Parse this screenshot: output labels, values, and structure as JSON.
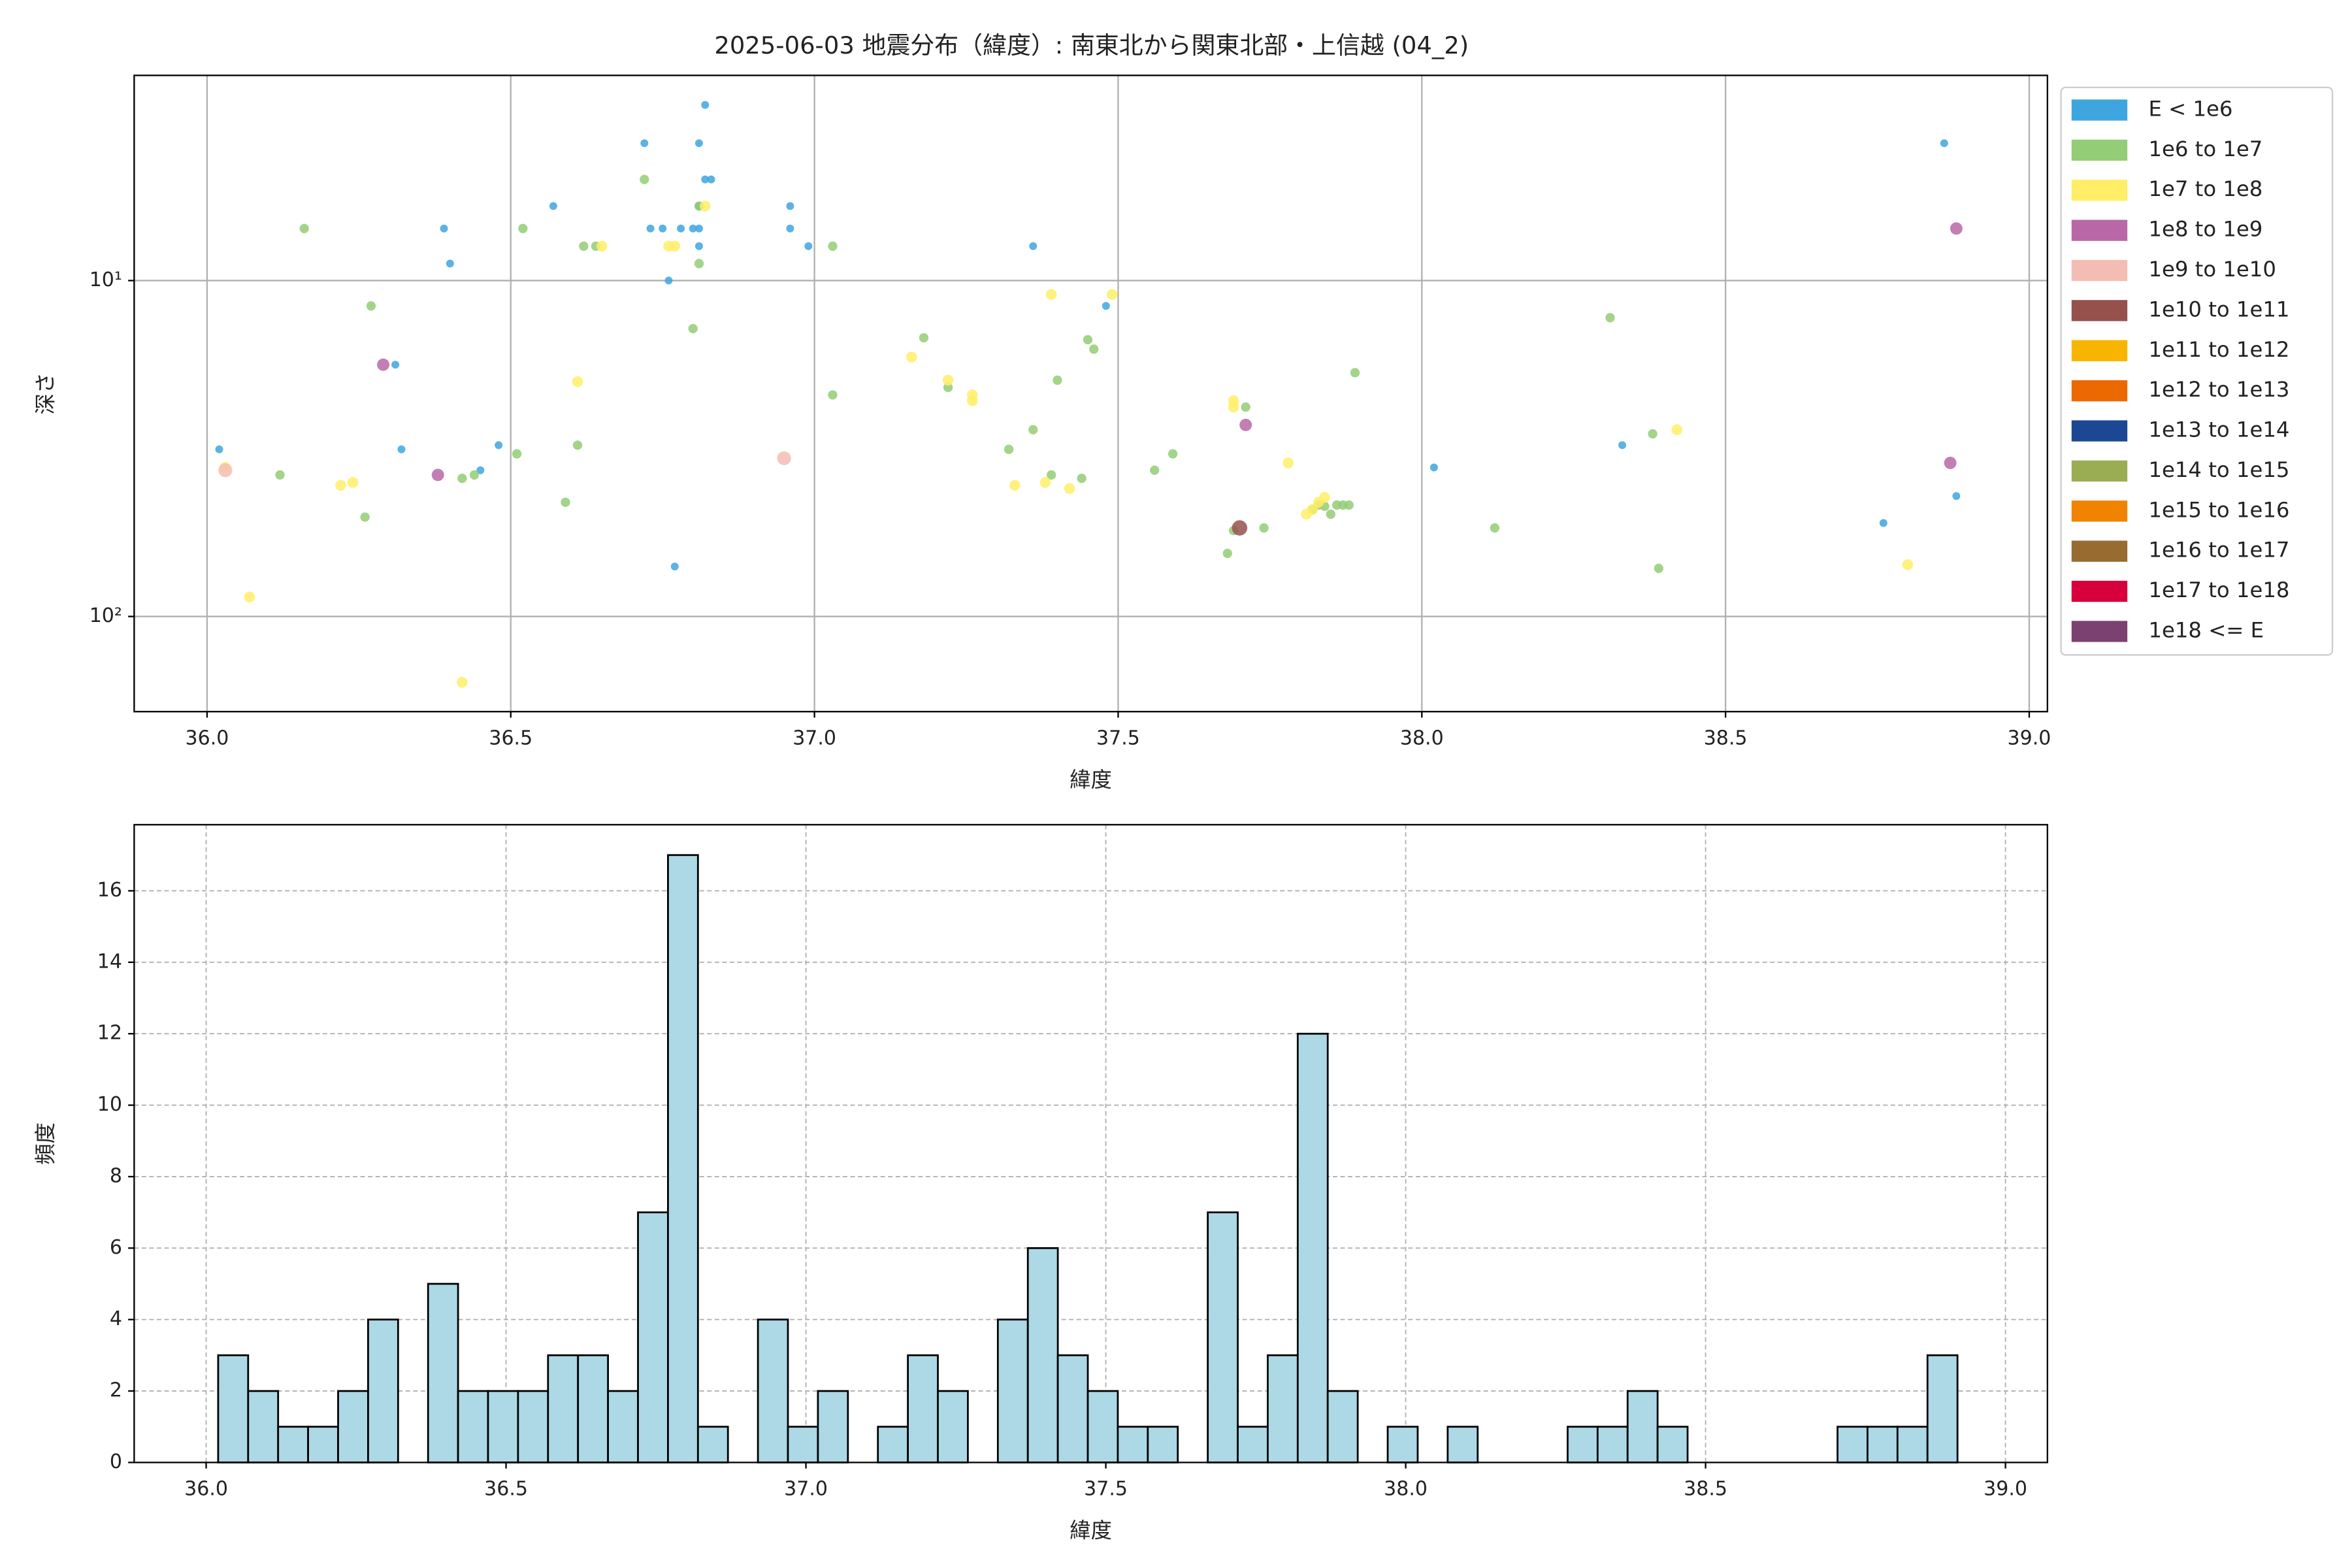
{
  "chart_data": [
    {
      "type": "scatter",
      "title": "2025-06-03 地震分布（緯度）: 南東北から関東北部・上信越 (04_2)",
      "xlabel": "緯度",
      "ylabel": "深さ",
      "yscale": "log",
      "grid": true,
      "legend": "outside-right",
      "xlim": [
        35.88,
        39.03
      ],
      "ylim": [
        192,
        2.45
      ],
      "xticks": [
        {
          "value": 36,
          "label": "36.0"
        },
        {
          "value": 36.5,
          "label": "36.5"
        },
        {
          "value": 37,
          "label": "37.0"
        },
        {
          "value": 37.5,
          "label": "37.5"
        },
        {
          "value": 38,
          "label": "38.0"
        },
        {
          "value": 38.5,
          "label": "38.5"
        },
        {
          "value": 39,
          "label": "39.0"
        }
      ],
      "yticks": [
        {
          "value": 10,
          "label": "10¹"
        },
        {
          "value": 100,
          "label": "10²"
        }
      ],
      "series": [
        {
          "name": "E < 1e6",
          "color": "#3ea6de",
          "x": [
            36.02,
            36.31,
            36.32,
            36.39,
            36.4,
            36.45,
            36.48,
            36.57,
            36.72,
            36.73,
            36.75,
            36.76,
            36.77,
            36.78,
            36.8,
            36.81,
            36.81,
            36.81,
            36.81,
            36.82,
            36.82,
            36.83,
            36.96,
            36.96,
            36.99,
            37.36,
            37.48,
            38.02,
            38.33,
            38.76,
            38.86,
            38.88
          ],
          "values": [
            31.8,
            17.8,
            31.8,
            7.0,
            8.9,
            36.7,
            30.9,
            6.0,
            3.9,
            7.0,
            7.0,
            10,
            71,
            7.0,
            7.0,
            3.9,
            7.9,
            6.0,
            7.0,
            3.0,
            5.0,
            5.0,
            6.0,
            7.0,
            7.9,
            7.9,
            11.9,
            36,
            30.9,
            52.7,
            3.9,
            43.8
          ]
        },
        {
          "name": "1e6 to 1e7",
          "color": "#93cd76",
          "x": [
            36.16,
            36.12,
            36.27,
            36.26,
            36.42,
            36.44,
            36.51,
            36.52,
            36.59,
            36.61,
            36.62,
            36.64,
            36.72,
            36.8,
            36.81,
            36.81,
            37.03,
            37.03,
            37.18,
            37.22,
            37.32,
            37.36,
            37.4,
            37.39,
            37.44,
            37.45,
            37.46,
            37.56,
            37.59,
            37.68,
            37.69,
            37.71,
            37.74,
            37.82,
            37.83,
            37.84,
            37.85,
            37.86,
            37.87,
            37.88,
            37.89,
            38.12,
            38.31,
            38.38,
            38.39
          ],
          "values": [
            7.0,
            37.9,
            11.9,
            50.6,
            38.8,
            37.9,
            32.8,
            7.0,
            45.7,
            30.9,
            7.9,
            7.9,
            5.0,
            13.9,
            8.9,
            6.0,
            7.9,
            21.9,
            14.8,
            20.8,
            31.8,
            27.8,
            19.8,
            37.9,
            38.8,
            15.0,
            16.0,
            36.7,
            32.8,
            64.9,
            55.5,
            23.8,
            54.5,
            48.1,
            46.6,
            47,
            49.6,
            46.6,
            46.6,
            46.6,
            18.8,
            54.5,
            12.9,
            28.6,
            71.9
          ]
        },
        {
          "name": "1e7 to 1e8",
          "color": "#ffee66",
          "x": [
            36.03,
            36.07,
            36.22,
            36.24,
            36.61,
            36.65,
            36.76,
            36.77,
            36.42,
            36.82,
            37.16,
            37.22,
            37.26,
            37.26,
            37.33,
            37.38,
            37.39,
            37.42,
            37.49,
            37.69,
            37.69,
            37.78,
            37.81,
            37.82,
            37.83,
            37.84,
            38.42,
            38.8
          ],
          "values": [
            36,
            87.5,
            40.7,
            39.9,
            20,
            7.9,
            7.9,
            7.9,
            157,
            6.0,
            16.9,
            19.8,
            21.9,
            22.8,
            40.7,
            39.9,
            11.0,
            41.6,
            11.0,
            23.8,
            22.8,
            34.9,
            49.6,
            48,
            45.7,
            44.2,
            27.8,
            70.1
          ]
        },
        {
          "name": "1e8 to 1e9",
          "color": "#b967a6",
          "x": [
            36.29,
            36.38,
            37.71,
            38.87,
            38.88
          ],
          "values": [
            17.8,
            37.9,
            26.9,
            34.9,
            7.0
          ]
        },
        {
          "name": "1e9 to 1e10",
          "color": "#f4bdb4",
          "x": [
            36.03,
            36.95
          ],
          "values": [
            36.7,
            33.8
          ]
        },
        {
          "name": "1e10 to 1e11",
          "color": "#96514d",
          "x": [
            37.7
          ],
          "values": [
            54.5
          ]
        },
        {
          "name": "1e11 to 1e12",
          "color": "#f8b500",
          "x": [],
          "values": []
        },
        {
          "name": "1e12 to 1e13",
          "color": "#ec6800",
          "x": [],
          "values": []
        },
        {
          "name": "1e13 to 1e14",
          "color": "#1c4893",
          "x": [],
          "values": []
        },
        {
          "name": "1e14 to 1e15",
          "color": "#9aad53",
          "x": [],
          "values": []
        },
        {
          "name": "1e15 to 1e16",
          "color": "#f08300",
          "x": [],
          "values": []
        },
        {
          "name": "1e16 to 1e17",
          "color": "#986b30",
          "x": [],
          "values": []
        },
        {
          "name": "1e17 to 1e18",
          "color": "#d7003a",
          "x": [],
          "values": []
        },
        {
          "name": "1e18 <= E",
          "color": "#7b4171",
          "x": [],
          "values": []
        }
      ]
    },
    {
      "type": "histogram",
      "xlabel": "緯度",
      "ylabel": "頻度",
      "grid": true,
      "color": "#add8e6",
      "edgecolor": "#000000",
      "xlim": [
        35.88,
        39.07
      ],
      "ylim": [
        0,
        17.85
      ],
      "xticks": [
        {
          "value": 36,
          "label": "36.0"
        },
        {
          "value": 36.5,
          "label": "36.5"
        },
        {
          "value": 37,
          "label": "37.0"
        },
        {
          "value": 37.5,
          "label": "37.5"
        },
        {
          "value": 38,
          "label": "38.0"
        },
        {
          "value": 38.5,
          "label": "38.5"
        },
        {
          "value": 39,
          "label": "39.0"
        }
      ],
      "yticks": [
        0,
        2,
        4,
        6,
        8,
        10,
        12,
        14,
        16
      ],
      "bins": [
        36.02,
        36.07,
        36.12,
        36.17,
        36.22,
        36.27,
        36.32,
        36.37,
        36.42,
        36.47,
        36.52,
        36.57,
        36.62,
        36.67,
        36.72,
        36.77,
        36.82,
        36.87,
        36.92,
        36.97,
        37.02,
        37.07,
        37.12,
        37.17,
        37.22,
        37.27,
        37.32,
        37.37,
        37.42,
        37.47,
        37.52,
        37.57,
        37.62,
        37.67,
        37.72,
        37.77,
        37.82,
        37.87,
        37.92,
        37.97,
        38.02,
        38.07,
        38.12,
        38.17,
        38.22,
        38.27,
        38.32,
        38.37,
        38.42,
        38.47,
        38.52,
        38.57,
        38.62,
        38.67,
        38.72,
        38.77,
        38.82,
        38.87,
        38.92
      ],
      "values": [
        3,
        2,
        1,
        1,
        2,
        4,
        0,
        5,
        2,
        2,
        2,
        3,
        3,
        2,
        7,
        17,
        1,
        0,
        4,
        1,
        2,
        0,
        1,
        3,
        2,
        0,
        4,
        6,
        3,
        2,
        1,
        1,
        0,
        7,
        1,
        3,
        12,
        2,
        0,
        1,
        0,
        1,
        0,
        0,
        0,
        1,
        1,
        2,
        1,
        0,
        0,
        0,
        0,
        0,
        1,
        1,
        1,
        3
      ]
    }
  ]
}
